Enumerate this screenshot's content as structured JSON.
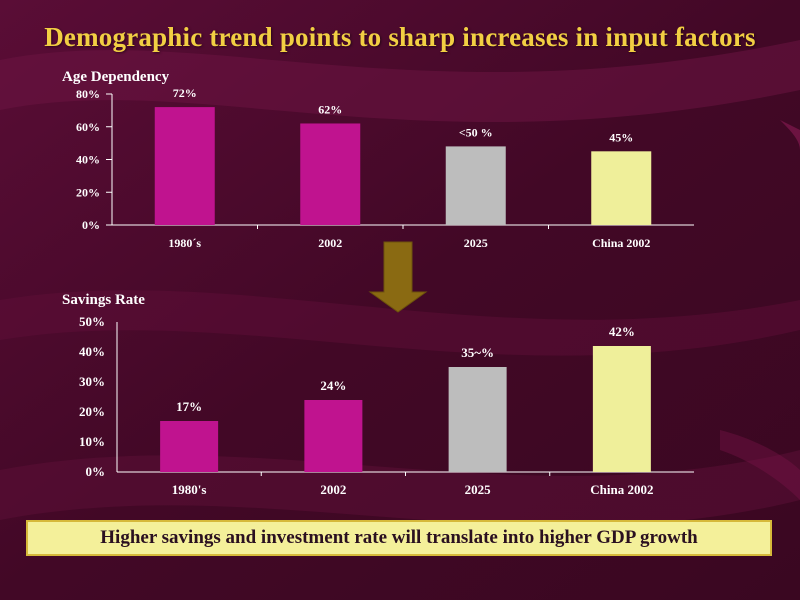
{
  "slide": {
    "title": "Demographic trend points to sharp increases in input factors",
    "banner": "Higher savings and investment rate will translate into higher GDP growth"
  },
  "colors": {
    "background": "#4a0a2c",
    "title": "#f2cf43",
    "magenta": "#c0138f",
    "grey": "#bdbdbd",
    "yellow": "#efef9a",
    "arrow": "#8a6a12",
    "banner_bg": "#f4f09a"
  },
  "chart_data": [
    {
      "type": "bar",
      "title": "Age Dependency",
      "categories": [
        "1980´s",
        "2002",
        "2025",
        "China 2002"
      ],
      "values": [
        72,
        62,
        48,
        45
      ],
      "data_labels": [
        "72%",
        "62%",
        "<50 %",
        "45%"
      ],
      "bar_colors": [
        "#c0138f",
        "#c0138f",
        "#bdbdbd",
        "#efef9a"
      ],
      "ylim": [
        0,
        80
      ],
      "yticks": [
        0,
        20,
        40,
        60,
        80
      ],
      "ytick_labels": [
        "0%",
        "20%",
        "40%",
        "60%",
        "80%"
      ],
      "xlabel": "",
      "ylabel": "",
      "grid": false
    },
    {
      "type": "bar",
      "title": "Savings Rate",
      "categories": [
        "1980's",
        "2002",
        "2025",
        "China 2002"
      ],
      "values": [
        17,
        24,
        35,
        42
      ],
      "data_labels": [
        "17%",
        "24%",
        "35~%",
        "42%"
      ],
      "bar_colors": [
        "#c0138f",
        "#c0138f",
        "#bdbdbd",
        "#efef9a"
      ],
      "ylim": [
        0,
        50
      ],
      "yticks": [
        0,
        10,
        20,
        30,
        40,
        50
      ],
      "ytick_labels": [
        "0%",
        "10%",
        "20%",
        "30%",
        "40%",
        "50%"
      ],
      "xlabel": "",
      "ylabel": "",
      "grid": false
    }
  ]
}
